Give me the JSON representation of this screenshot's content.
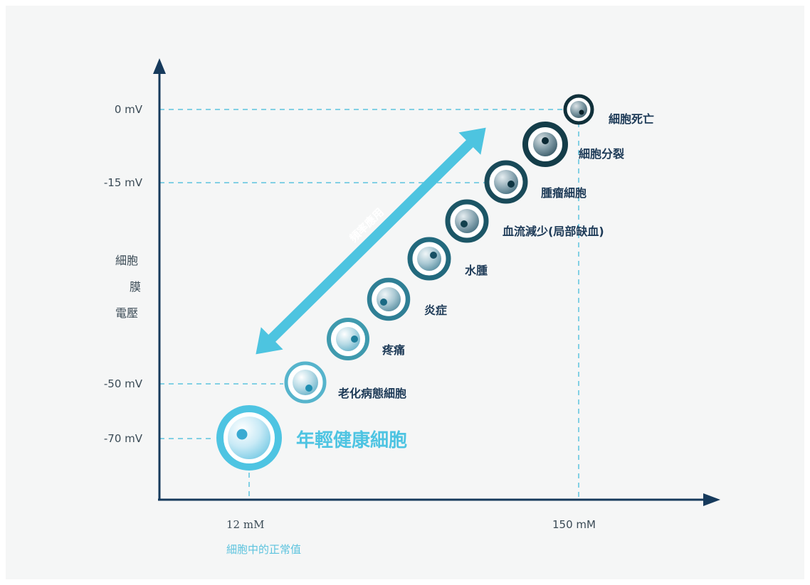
{
  "axis": {
    "y_label_lines": [
      "細胞",
      "膜",
      "電壓"
    ],
    "y_ticks": [
      "0 mV",
      "-15 mV",
      "-50 mV",
      "-70 mV"
    ],
    "x_ticks": [
      "12 mM",
      "150 mM"
    ],
    "x_sub_label": "細胞中的正常值"
  },
  "arrow_label": "頻率應用",
  "cells": [
    {
      "label": "年輕健康細胞"
    },
    {
      "label": "老化病態細胞"
    },
    {
      "label": "疼痛"
    },
    {
      "label": "炎症"
    },
    {
      "label": "水腫"
    },
    {
      "label": "血流減少(局部缺血)"
    },
    {
      "label": "腫瘤細胞"
    },
    {
      "label": "細胞分裂"
    },
    {
      "label": "細胞死亡"
    }
  ],
  "colors": {
    "axis": "#163a5c",
    "guide": "#5cc3de",
    "arrow": "#4dc4e0",
    "healthy_label": "#4ec4e2",
    "label": "#1d3a57"
  }
}
